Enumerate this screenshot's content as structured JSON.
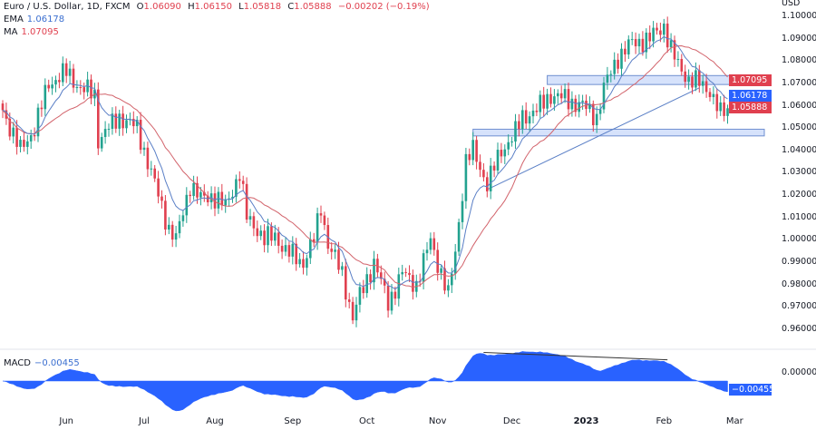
{
  "header": {
    "symbol": "Euro / U.S. Dollar, 1D, FXCM",
    "open_label": "O",
    "open": "1.06090",
    "high_label": "H",
    "high": "1.06150",
    "low_label": "L",
    "low": "1.05818",
    "close_label": "C",
    "close": "1.05888",
    "change": "−0.00202 (−0.19%)"
  },
  "indicators": {
    "ema_label": "EMA",
    "ema_value": "1.06178",
    "ma_label": "MA",
    "ma_value": "1.07095",
    "macd_label": "MACD",
    "macd_value": "−0.00455"
  },
  "price_axis": {
    "currency": "USD",
    "ticks": [
      "1.10000",
      "1.09000",
      "1.08000",
      "1.07000",
      "1.06000",
      "1.05000",
      "1.04000",
      "1.03000",
      "1.02000",
      "1.01000",
      "1.00000",
      "0.99000",
      "0.98000",
      "0.97000",
      "0.96000"
    ],
    "tags": {
      "ma": "1.07095",
      "ema": "1.06178",
      "close": "1.05888"
    }
  },
  "macd_axis": {
    "zero": "0.00000",
    "tag": "−0.00455"
  },
  "colors": {
    "up": "#22a28f",
    "down": "#e0404f",
    "ema": "#5a7fc6",
    "ma": "#d2636b",
    "zone": "#d6e2fb",
    "zone_border": "#6f8fd0",
    "macd": "#2962ff"
  },
  "chart_data": {
    "type": "candlestick",
    "title": "Euro / U.S. Dollar, 1D, FXCM",
    "ylim": [
      0.955,
      1.1015
    ],
    "x_labels": [
      {
        "label": "Jun",
        "index": 18
      },
      {
        "label": "Jul",
        "index": 40
      },
      {
        "label": "Aug",
        "index": 60
      },
      {
        "label": "Sep",
        "index": 82
      },
      {
        "label": "Oct",
        "index": 103
      },
      {
        "label": "Nov",
        "index": 123
      },
      {
        "label": "Dec",
        "index": 144
      },
      {
        "label": "2023",
        "index": 165
      },
      {
        "label": "Feb",
        "index": 187
      },
      {
        "label": "Mar",
        "index": 207
      }
    ],
    "close_waypoints": [
      [
        0,
        1.058
      ],
      [
        5,
        1.04
      ],
      [
        9,
        1.05
      ],
      [
        13,
        1.07
      ],
      [
        18,
        1.075
      ],
      [
        22,
        1.068
      ],
      [
        26,
        1.065
      ],
      [
        27,
        1.045
      ],
      [
        30,
        1.05
      ],
      [
        33,
        1.055
      ],
      [
        36,
        1.052
      ],
      [
        38,
        1.05
      ],
      [
        41,
        1.035
      ],
      [
        44,
        1.02
      ],
      [
        47,
        1.005
      ],
      [
        49,
        1.0
      ],
      [
        53,
        1.025
      ],
      [
        56,
        1.018
      ],
      [
        59,
        1.02
      ],
      [
        63,
        1.015
      ],
      [
        67,
        1.03
      ],
      [
        69,
        1.01
      ],
      [
        72,
        1.005
      ],
      [
        74,
        1.0
      ],
      [
        77,
        1.002
      ],
      [
        80,
        0.995
      ],
      [
        85,
        0.99
      ],
      [
        88,
        1.0
      ],
      [
        90,
        1.015
      ],
      [
        92,
        0.998
      ],
      [
        96,
        0.985
      ],
      [
        99,
        0.965
      ],
      [
        101,
        0.975
      ],
      [
        105,
        0.99
      ],
      [
        109,
        0.972
      ],
      [
        113,
        0.985
      ],
      [
        117,
        0.98
      ],
      [
        121,
        1.0
      ],
      [
        123,
        0.99
      ],
      [
        126,
        0.975
      ],
      [
        128,
        0.995
      ],
      [
        131,
        1.035
      ],
      [
        133,
        1.04
      ],
      [
        137,
        1.025
      ],
      [
        141,
        1.04
      ],
      [
        145,
        1.048
      ],
      [
        147,
        1.055
      ],
      [
        151,
        1.058
      ],
      [
        155,
        1.065
      ],
      [
        159,
        1.063
      ],
      [
        164,
        1.06
      ],
      [
        168,
        1.055
      ],
      [
        170,
        1.068
      ],
      [
        174,
        1.082
      ],
      [
        178,
        1.088
      ],
      [
        183,
        1.09
      ],
      [
        187,
        1.096
      ],
      [
        189,
        1.085
      ],
      [
        191,
        1.078
      ],
      [
        194,
        1.072
      ],
      [
        197,
        1.07
      ],
      [
        200,
        1.067
      ],
      [
        203,
        1.056
      ],
      [
        205,
        1.0589
      ]
    ],
    "ema_period": 9,
    "ma_period": 20,
    "zones": [
      {
        "from_index": 154,
        "low": 1.0695,
        "high": 1.0735
      },
      {
        "from_index": 133,
        "low": 1.0465,
        "high": 1.0495
      }
    ],
    "trendline": [
      [
        137,
        1.0225
      ],
      [
        197,
        1.068
      ]
    ],
    "macd_divergence_line": [
      [
        136,
        0.0135
      ],
      [
        188,
        0.01
      ]
    ]
  }
}
